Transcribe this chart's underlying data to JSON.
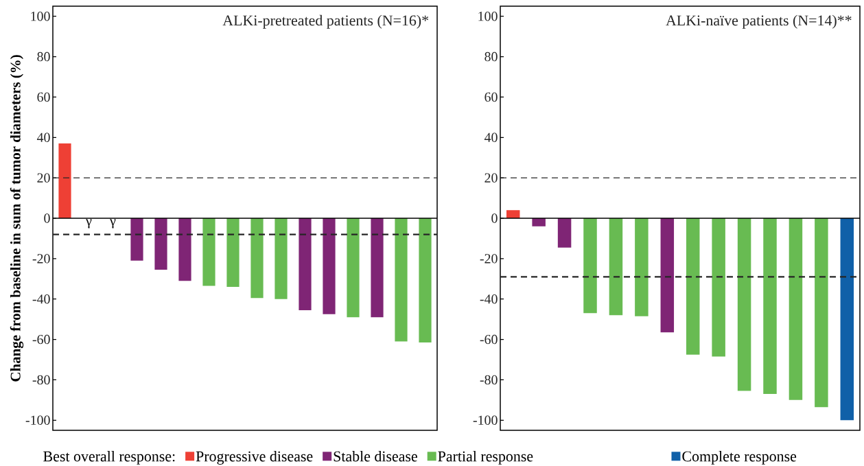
{
  "chart_data": [
    {
      "type": "bar",
      "title": "ALKi-pretreated patients (N=16)*",
      "legend_title": "Best overall response:",
      "legend": "bottom",
      "ylabel": "Change from baseline in sum of tumor diameters (%)",
      "categories": [
        null,
        null,
        null,
        null,
        null,
        null,
        null,
        null,
        null,
        null,
        null,
        null,
        null,
        null,
        null,
        null
      ],
      "series": [
        {
          "name": "Progressive disease",
          "color": "#ee4035",
          "values": [
            37,
            null,
            null,
            null,
            null,
            null,
            null,
            null,
            null,
            null,
            null,
            null,
            null,
            null,
            null,
            null
          ]
        },
        {
          "name": "Stable disease",
          "color": "#7f2575",
          "values": [
            null,
            null,
            null,
            -21,
            -25.5,
            -31,
            null,
            null,
            null,
            null,
            -45.5,
            -47.5,
            null,
            -49,
            null,
            null
          ]
        },
        {
          "name": "Partial response",
          "color": "#68bb52",
          "values": [
            null,
            null,
            null,
            null,
            null,
            null,
            -33.5,
            -34,
            -39.5,
            -40,
            null,
            null,
            -49,
            null,
            -61,
            -61.5
          ]
        }
      ],
      "annotations": [
        {
          "text": "γ"
        },
        {
          "text": "γ"
        }
      ],
      "ylim": [
        -105,
        105
      ],
      "yticks": [
        -100,
        -80,
        -60,
        -40,
        -20,
        0,
        20,
        40,
        60,
        80,
        100
      ],
      "ref_lines": [
        {
          "axis": "y",
          "value": 20,
          "line_style": "dashed"
        },
        {
          "axis": "y",
          "value": -8,
          "line_style": "dashed"
        }
      ]
    },
    {
      "type": "bar",
      "title": "ALKi-naïve patients (N=14)**",
      "legend": "bottom",
      "categories": [
        null,
        null,
        null,
        null,
        null,
        null,
        null,
        null,
        null,
        null,
        null,
        null,
        null,
        null
      ],
      "series": [
        {
          "color": "#ee4035",
          "values": [
            4,
            null,
            null,
            null,
            null,
            null,
            null,
            null,
            null,
            null,
            null,
            null,
            null,
            null
          ]
        },
        {
          "color": "#7f2575",
          "values": [
            null,
            -4,
            -14.5,
            null,
            null,
            null,
            -56.5,
            null,
            null,
            null,
            null,
            null,
            null,
            null
          ]
        },
        {
          "color": "#68bb52",
          "values": [
            null,
            null,
            null,
            -47,
            -48,
            -48.5,
            null,
            -67.5,
            -68.5,
            -85.5,
            -87,
            -90,
            -93.5,
            null
          ]
        },
        {
          "name": "Complete response",
          "color": "#1060a8",
          "values": [
            null,
            null,
            null,
            null,
            null,
            null,
            null,
            null,
            null,
            null,
            null,
            null,
            null,
            -100
          ]
        }
      ],
      "ylim": [
        -105,
        105
      ],
      "yticks": [
        -100,
        -80,
        -60,
        -40,
        -20,
        0,
        20,
        40,
        60,
        80,
        100
      ],
      "ref_lines": [
        {
          "axis": "y",
          "value": 20,
          "line_style": "dashed"
        },
        {
          "axis": "y",
          "value": -29,
          "line_style": "dashed"
        }
      ]
    }
  ]
}
